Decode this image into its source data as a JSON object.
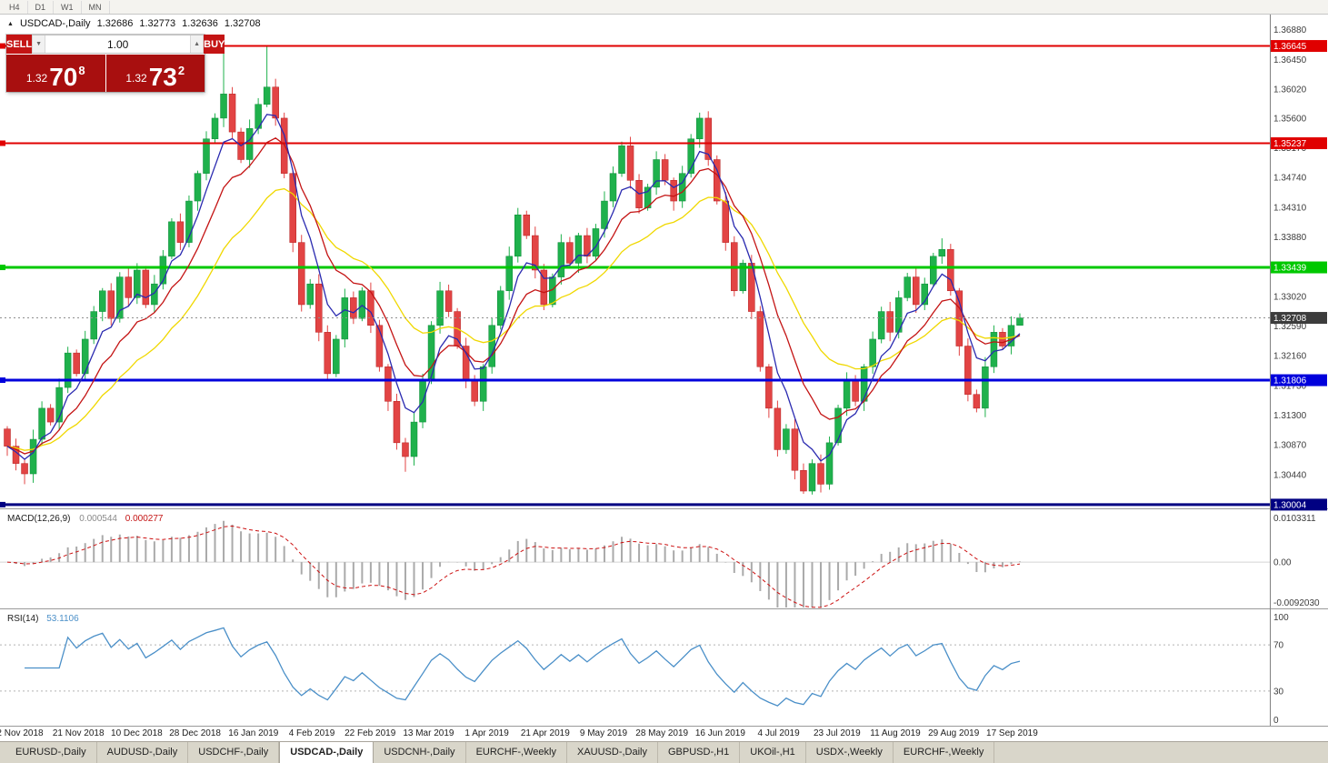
{
  "toolbar": {
    "timeframes": [
      "H4",
      "D1",
      "W1",
      "MN"
    ]
  },
  "chart_header": {
    "marker": "▲",
    "symbol_label": "USDCAD-,Daily",
    "open": "1.32686",
    "high": "1.32773",
    "low": "1.32636",
    "close": "1.32708"
  },
  "trade_panel": {
    "sell_label": "SELL",
    "buy_label": "BUY",
    "volume": "1.00",
    "step_down_icon": "▼",
    "step_up_icon": "▲",
    "sell_price": {
      "small": "1.32",
      "big": "70",
      "sup": "8"
    },
    "buy_price": {
      "small": "1.32",
      "big": "73",
      "sup": "2"
    },
    "button_color": "#c41414",
    "price_box_color": "#a80f0f"
  },
  "price_axis": {
    "labels": [
      "1.36880",
      "1.36450",
      "1.36020",
      "1.35600",
      "1.35170",
      "1.34740",
      "1.34310",
      "1.33880",
      "1.33450",
      "1.33020",
      "1.32590",
      "1.32160",
      "1.31730",
      "1.31300",
      "1.30870",
      "1.30440"
    ]
  },
  "hlines": [
    {
      "price": 1.36645,
      "label": "1.36645",
      "color": "#e00000",
      "thickness": 2
    },
    {
      "price": 1.35237,
      "label": "1.35237",
      "color": "#e00000",
      "thickness": 2
    },
    {
      "price": 1.33439,
      "label": "1.33439",
      "color": "#00c800",
      "thickness": 3
    },
    {
      "price": 1.31806,
      "label": "1.31806",
      "color": "#0000dc",
      "thickness": 3
    },
    {
      "price": 1.30004,
      "label": "1.30004",
      "color": "#000082",
      "thickness": 3
    }
  ],
  "current_price": {
    "value": 1.32708,
    "label": "1.32708",
    "tag_bg": "#3c3c3c"
  },
  "chart_data": {
    "type": "candlestick",
    "title": "USDCAD-,Daily",
    "y_axis": {
      "top": 1.371,
      "bottom": 1.2995
    },
    "first_open": 1.311,
    "closes": [
      1.3085,
      1.306,
      1.3045,
      1.3095,
      1.314,
      1.312,
      1.317,
      1.322,
      1.319,
      1.324,
      1.328,
      1.331,
      1.327,
      1.333,
      1.33,
      1.334,
      1.329,
      1.332,
      1.336,
      1.341,
      1.338,
      1.344,
      1.348,
      1.353,
      1.356,
      1.3595,
      1.354,
      1.35,
      1.3545,
      1.358,
      1.3605,
      1.356,
      1.348,
      1.338,
      1.329,
      1.332,
      1.325,
      1.319,
      1.324,
      1.33,
      1.327,
      1.331,
      1.326,
      1.32,
      1.315,
      1.309,
      1.307,
      1.312,
      1.318,
      1.326,
      1.331,
      1.328,
      1.323,
      1.318,
      1.315,
      1.32,
      1.326,
      1.331,
      1.336,
      1.342,
      1.339,
      1.334,
      1.329,
      1.333,
      1.338,
      1.335,
      1.339,
      1.336,
      1.34,
      1.344,
      1.348,
      1.352,
      1.347,
      1.343,
      1.346,
      1.35,
      1.347,
      1.344,
      1.348,
      1.353,
      1.356,
      1.35,
      1.344,
      1.338,
      1.331,
      1.335,
      1.328,
      1.32,
      1.314,
      1.308,
      1.311,
      1.305,
      1.302,
      1.306,
      1.303,
      1.309,
      1.314,
      1.318,
      1.315,
      1.32,
      1.324,
      1.328,
      1.325,
      1.33,
      1.333,
      1.329,
      1.332,
      1.336,
      1.337,
      1.331,
      1.323,
      1.316,
      1.314,
      1.32,
      1.325,
      1.323,
      1.326,
      1.32708
    ],
    "wick_overrides": {
      "2": {
        "low": 1.303
      },
      "25": {
        "high": 1.368
      },
      "30": {
        "high": 1.3664
      },
      "46": {
        "low": 1.3048
      },
      "80": {
        "high": 1.3568
      },
      "92": {
        "low": 1.3016
      },
      "108": {
        "high": 1.3386
      },
      "117": {
        "high": 1.32773,
        "low": 1.32636
      }
    },
    "colors": {
      "up": "#1fb14c",
      "up_border": "#0c8a38",
      "down": "#e24444",
      "down_border": "#b42020"
    },
    "moving_averages": [
      {
        "period": 20,
        "color": "#f0d800"
      },
      {
        "period": 10,
        "color": "#c41414"
      },
      {
        "period": 5,
        "color": "#2a2ab0"
      }
    ],
    "x_labels": [
      "2 Nov 2018",
      "21 Nov 2018",
      "10 Dec 2018",
      "28 Dec 2018",
      "16 Jan 2019",
      "4 Feb 2019",
      "22 Feb 2019",
      "13 Mar 2019",
      "1 Apr 2019",
      "21 Apr 2019",
      "9 May 2019",
      "28 May 2019",
      "16 Jun 2019",
      "4 Jul 2019",
      "23 Jul 2019",
      "11 Aug 2019",
      "29 Aug 2019",
      "17 Sep 2019"
    ],
    "indicators": {
      "macd": {
        "label": "MACD(12,26,9)",
        "value_main": "0.000544",
        "value_signal": "0.000277",
        "axis": {
          "top": "0.0103311",
          "mid": "0.00",
          "bottom": "-0.0092030",
          "top_v": 0.0103311,
          "bottom_v": -0.009203
        },
        "calc": {
          "fast": 6,
          "slow": 13,
          "signal": 5
        },
        "hist_color": "#aaaaaa",
        "signal_color": "#cc1111"
      },
      "rsi": {
        "label": "RSI(14)",
        "value": "53.1106",
        "color": "#4a8fc8",
        "levels": [
          70,
          30
        ],
        "axis_labels": [
          "100",
          "70",
          "30",
          "0"
        ],
        "calc_period": 7
      }
    }
  },
  "bottom_tabs": {
    "active_index": 3,
    "items": [
      "EURUSD-,Daily",
      "AUDUSD-,Daily",
      "USDCHF-,Daily",
      "USDCAD-,Daily",
      "USDCNH-,Daily",
      "EURCHF-,Weekly",
      "XAUUSD-,Daily",
      "GBPUSD-,H1",
      "UKOil-,H1",
      "USDX-,Weekly",
      "EURCHF-,Weekly"
    ]
  }
}
